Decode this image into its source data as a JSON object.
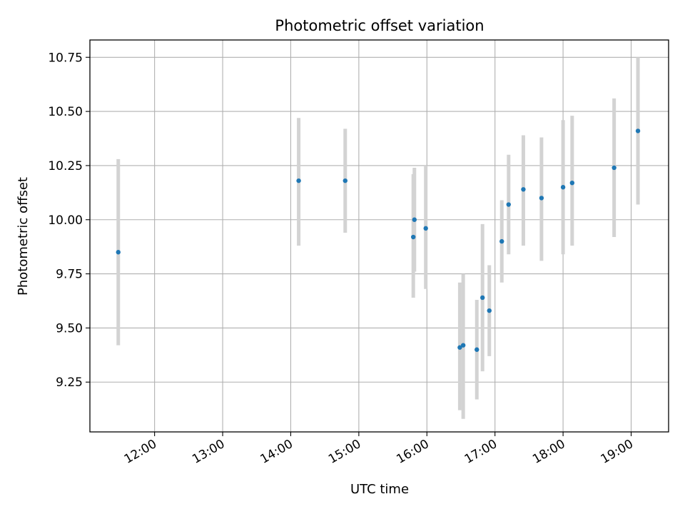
{
  "chart_data": {
    "type": "scatter",
    "title": "Photometric offset variation",
    "xlabel": "UTC time",
    "ylabel": "Photometric offset",
    "xlim": [
      "11:03",
      "19:33"
    ],
    "ylim": [
      9.02,
      10.83
    ],
    "x_ticks": [
      "12:00",
      "13:00",
      "14:00",
      "15:00",
      "16:00",
      "17:00",
      "18:00",
      "19:00"
    ],
    "y_ticks": [
      "9.25",
      "9.50",
      "9.75",
      "10.00",
      "10.25",
      "10.50",
      "10.75"
    ],
    "grid": true,
    "errorbar_color": "#d3d3d3",
    "marker_color": "#1f77b4",
    "points": [
      {
        "x": "11:28",
        "y": 9.85,
        "ylow": 9.42,
        "yhigh": 10.28
      },
      {
        "x": "14:07",
        "y": 10.18,
        "ylow": 9.88,
        "yhigh": 10.47
      },
      {
        "x": "14:48",
        "y": 10.18,
        "ylow": 9.94,
        "yhigh": 10.42
      },
      {
        "x": "15:48",
        "y": 9.92,
        "ylow": 9.64,
        "yhigh": 10.21
      },
      {
        "x": "15:49",
        "y": 10.0,
        "ylow": 9.76,
        "yhigh": 10.24
      },
      {
        "x": "15:59",
        "y": 9.96,
        "ylow": 9.68,
        "yhigh": 10.25
      },
      {
        "x": "16:29",
        "y": 9.41,
        "ylow": 9.12,
        "yhigh": 9.71
      },
      {
        "x": "16:32",
        "y": 9.42,
        "ylow": 9.08,
        "yhigh": 9.75
      },
      {
        "x": "16:44",
        "y": 9.4,
        "ylow": 9.17,
        "yhigh": 9.63
      },
      {
        "x": "16:49",
        "y": 9.64,
        "ylow": 9.3,
        "yhigh": 9.98
      },
      {
        "x": "16:55",
        "y": 9.58,
        "ylow": 9.37,
        "yhigh": 9.79
      },
      {
        "x": "17:06",
        "y": 9.9,
        "ylow": 9.71,
        "yhigh": 10.09
      },
      {
        "x": "17:12",
        "y": 10.07,
        "ylow": 9.84,
        "yhigh": 10.3
      },
      {
        "x": "17:25",
        "y": 10.14,
        "ylow": 9.88,
        "yhigh": 10.39
      },
      {
        "x": "17:41",
        "y": 10.1,
        "ylow": 9.81,
        "yhigh": 10.38
      },
      {
        "x": "18:00",
        "y": 10.15,
        "ylow": 9.84,
        "yhigh": 10.46
      },
      {
        "x": "18:08",
        "y": 10.17,
        "ylow": 9.88,
        "yhigh": 10.48
      },
      {
        "x": "18:45",
        "y": 10.24,
        "ylow": 9.92,
        "yhigh": 10.56
      },
      {
        "x": "19:06",
        "y": 10.41,
        "ylow": 10.07,
        "yhigh": 10.75
      }
    ]
  }
}
